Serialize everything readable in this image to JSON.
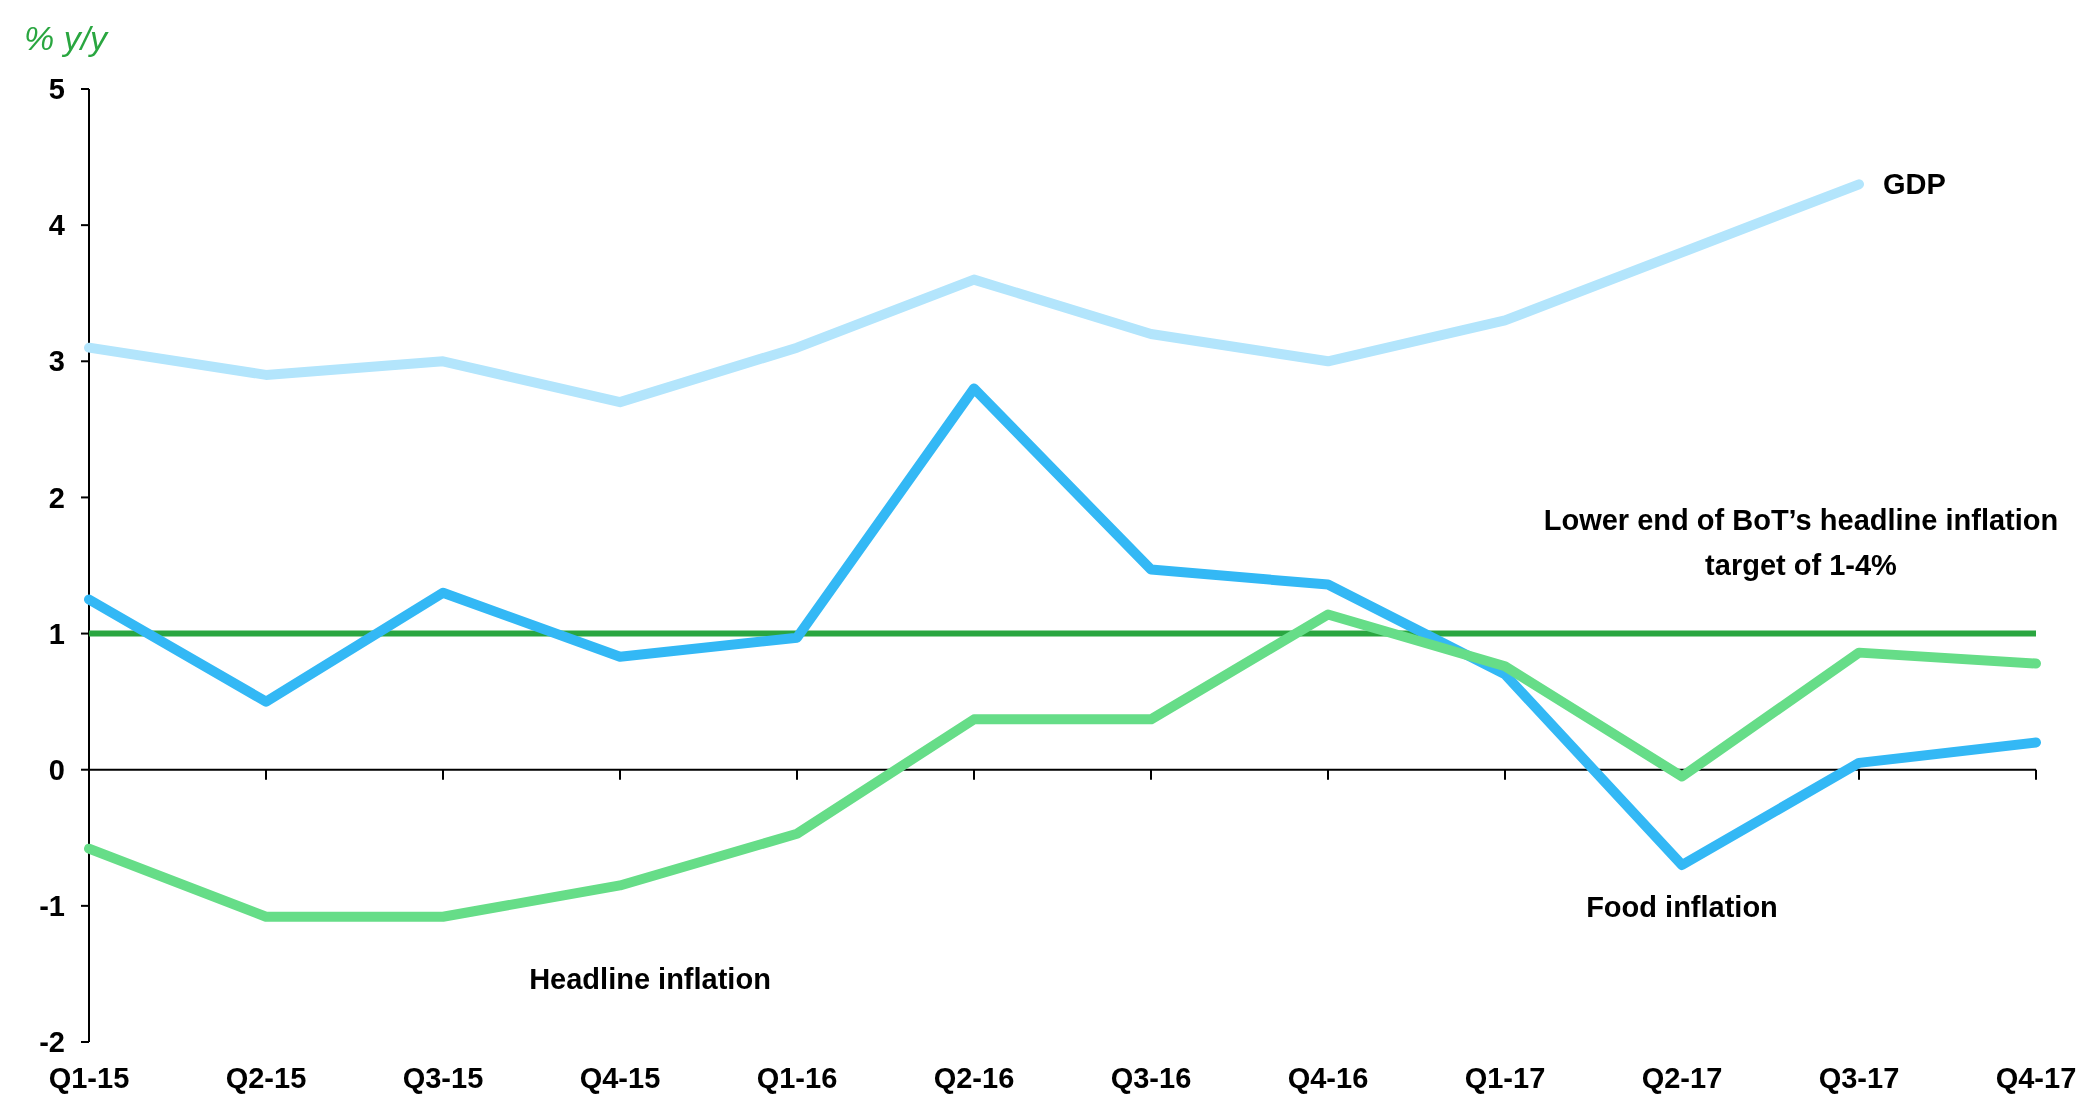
{
  "chart_data": {
    "type": "line",
    "ylabel": "% y/y",
    "categories": [
      "Q1-15",
      "Q2-15",
      "Q3-15",
      "Q4-15",
      "Q1-16",
      "Q2-16",
      "Q3-16",
      "Q4-16",
      "Q1-17",
      "Q2-17",
      "Q3-17",
      "Q4-17"
    ],
    "ylim": [
      -2,
      5
    ],
    "yticks": [
      -2,
      -1,
      0,
      1,
      2,
      3,
      4,
      5
    ],
    "line_style": "solid",
    "marker": "none",
    "series": [
      {
        "name": "GDP",
        "color": "#b3e5fc",
        "values": [
          3.1,
          2.9,
          3.0,
          2.7,
          3.1,
          3.6,
          3.2,
          3.0,
          3.3,
          3.8,
          4.3,
          null
        ]
      },
      {
        "name": "Food inflation",
        "color": "#33b8f5",
        "values": [
          1.25,
          0.5,
          1.3,
          0.83,
          0.97,
          2.8,
          1.47,
          1.36,
          0.7,
          -0.7,
          0.05,
          0.2
        ]
      },
      {
        "name": "Headline inflation",
        "color": "#66dd88",
        "values": [
          -0.58,
          -1.08,
          -1.08,
          -0.85,
          -0.47,
          0.37,
          0.37,
          1.14,
          0.76,
          -0.05,
          0.86,
          0.78
        ]
      }
    ],
    "ref_lines": [
      {
        "axis": "y",
        "value": 1,
        "label": "Lower end of BoT’s headline inflation target of 1-4%",
        "color": "#2aa640"
      }
    ]
  }
}
